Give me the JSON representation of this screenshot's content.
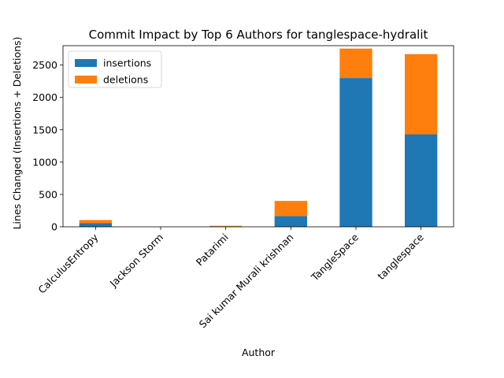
{
  "chart_data": {
    "type": "bar",
    "stacked": true,
    "title": "Commit Impact by Top 6 Authors for tanglespace-hydralit",
    "xlabel": "Author",
    "ylabel": "Lines Changed (Insertions + Deletions)",
    "categories": [
      "CalculusEntropy",
      "Jackson Storm",
      "Patarimi",
      "Sai kumar Murali krishnan",
      "TangleSpace",
      "tanglespace"
    ],
    "series": [
      {
        "name": "insertions",
        "color": "#1f77b4",
        "values": [
          55,
          0,
          5,
          165,
          2300,
          1430
        ]
      },
      {
        "name": "deletions",
        "color": "#ff7f0e",
        "values": [
          50,
          0,
          10,
          235,
          455,
          1240
        ]
      }
    ],
    "ylim": [
      0,
      2800
    ],
    "yticks": [
      0,
      500,
      1000,
      1500,
      2000,
      2500
    ],
    "grid": false,
    "legend_position": "top-left"
  }
}
